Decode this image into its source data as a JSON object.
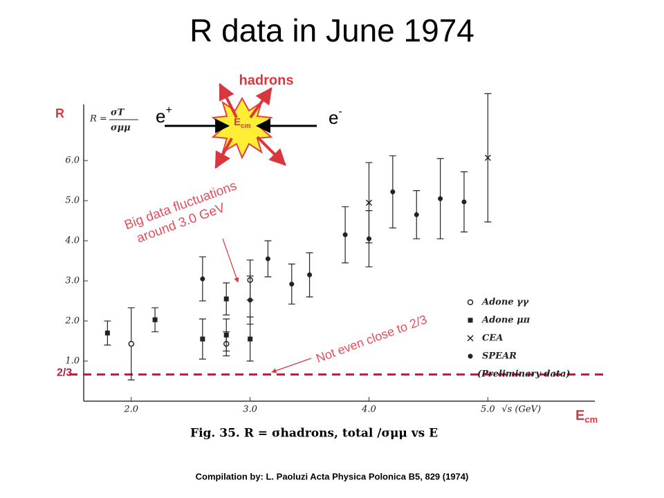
{
  "title": "R data in June 1974",
  "diagram": {
    "label": "hadrons",
    "left": [
      "e",
      "+"
    ],
    "right": [
      "e",
      "-"
    ],
    "center": [
      "E",
      "cm"
    ]
  },
  "annotations": {
    "fluct": [
      "Big data fluctuations",
      "around 3.0 GeV"
    ],
    "close": "Not even close to 2/3",
    "r_label": "R",
    "ecm": [
      "E",
      "cm"
    ]
  },
  "footer": "Compilation by: L. Paoluzi Acta Physica Polonica B5, 829 (1974)",
  "chart_data": {
    "type": "scatter",
    "caption": "Fig. 35.  R = σhadrons, total /σμμ vs E",
    "xlabel": "√s (GeV)",
    "ylabel": [
      "R =",
      "σT",
      "σμμ"
    ],
    "xlim": [
      1.6,
      5.9
    ],
    "ylim": [
      0,
      7.4
    ],
    "xticks": [
      {
        "value": 2,
        "label": "2.0"
      },
      {
        "value": 3,
        "label": "3.0"
      },
      {
        "value": 4,
        "label": "4.0"
      },
      {
        "value": 5,
        "label": "5.0"
      }
    ],
    "yticks": [
      {
        "value": 1,
        "label": "1.0"
      },
      {
        "value": 2,
        "label": "2.0"
      },
      {
        "value": 3,
        "label": "3.0"
      },
      {
        "value": 4,
        "label": "4.0"
      },
      {
        "value": 5,
        "label": "5.0"
      },
      {
        "value": 6,
        "label": "6.0"
      }
    ],
    "reference_line": {
      "value": 0.6667,
      "label": "2/3",
      "color": "#b0203a"
    },
    "legend_note": "(Preliminary data)",
    "series": [
      {
        "name": "Adone γγ",
        "marker": "open-circle",
        "color": "#222",
        "x": [
          2.0,
          2.8,
          3.0
        ],
        "values": [
          1.43,
          1.43,
          3.02
        ],
        "errors": [
          0.9,
          0.3,
          0.5
        ]
      },
      {
        "name": "Adone μπ",
        "marker": "square",
        "color": "#222",
        "x": [
          1.8,
          2.2,
          2.6,
          2.8,
          2.8,
          3.0
        ],
        "values": [
          1.7,
          2.03,
          1.55,
          2.55,
          1.65,
          1.55
        ],
        "errors": [
          0.3,
          0.3,
          0.5,
          0.4,
          0.4,
          0.55
        ]
      },
      {
        "name": "CEA",
        "marker": "cross",
        "color": "#222",
        "x": [
          4.0,
          5.0
        ],
        "values": [
          4.95,
          6.07
        ],
        "errors": [
          1.0,
          1.6
        ]
      },
      {
        "name": "SPEAR",
        "marker": "dot",
        "color": "#222",
        "x": [
          2.6,
          3.0,
          3.15,
          3.35,
          3.5,
          3.8,
          4.0,
          4.2,
          4.4,
          4.6,
          4.8
        ],
        "values": [
          3.05,
          2.52,
          3.55,
          2.92,
          3.15,
          4.15,
          4.05,
          5.22,
          4.65,
          5.05,
          4.97
        ],
        "errors": [
          0.55,
          0.6,
          0.45,
          0.5,
          0.55,
          0.7,
          0.7,
          0.9,
          0.6,
          1.0,
          0.75
        ]
      }
    ]
  }
}
